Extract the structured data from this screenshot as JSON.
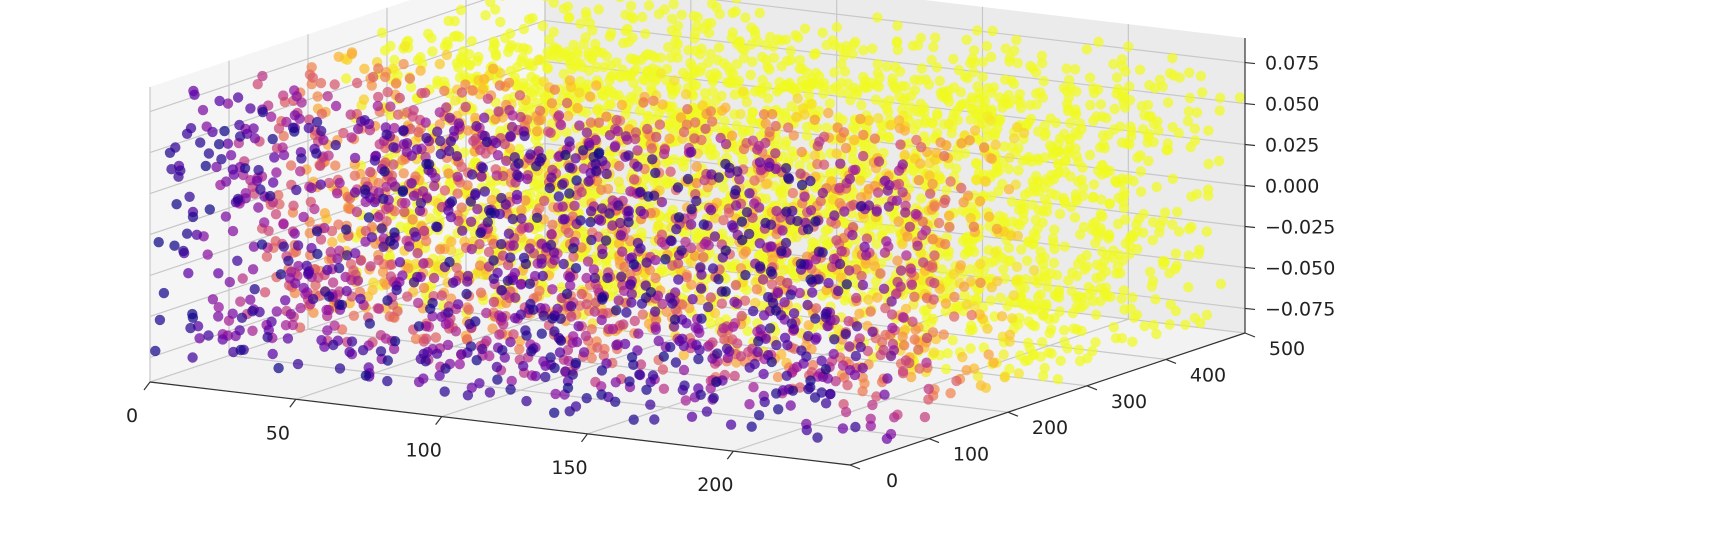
{
  "chart_data": {
    "type": "scatter",
    "projection": "3d",
    "title": "",
    "xlabel": "",
    "ylabel": "",
    "zlabel": "",
    "grid": true,
    "colormap": "plasma",
    "colormap_stops": [
      "#0d0887",
      "#5c01a6",
      "#9c179e",
      "#cc4778",
      "#ed7953",
      "#fdb42f",
      "#f0f921"
    ],
    "x_range": [
      0,
      240
    ],
    "y_range": [
      0,
      500
    ],
    "z_range": [
      -0.09,
      0.09
    ],
    "x_ticks": [
      0,
      50,
      100,
      150,
      200
    ],
    "y_ticks": [
      0,
      100,
      200,
      300,
      400,
      500
    ],
    "z_ticks": [
      -0.075,
      -0.05,
      -0.025,
      0.0,
      0.025,
      0.05,
      0.075
    ],
    "x_tick_labels": [
      "0",
      "50",
      "100",
      "150",
      "200"
    ],
    "y_tick_labels": [
      "0",
      "100",
      "200",
      "300",
      "400",
      "500"
    ],
    "z_tick_labels": [
      "−0.075",
      "−0.050",
      "−0.025",
      "0.000",
      "0.025",
      "0.050",
      "0.075"
    ],
    "points_description": "Dense cloud of points filling the box x in [0,240], y in [0,500], z in [-0.09,0.09]; color increases with y (purple near y=0, yellow for y above ~250)",
    "point_count": 5000
  }
}
